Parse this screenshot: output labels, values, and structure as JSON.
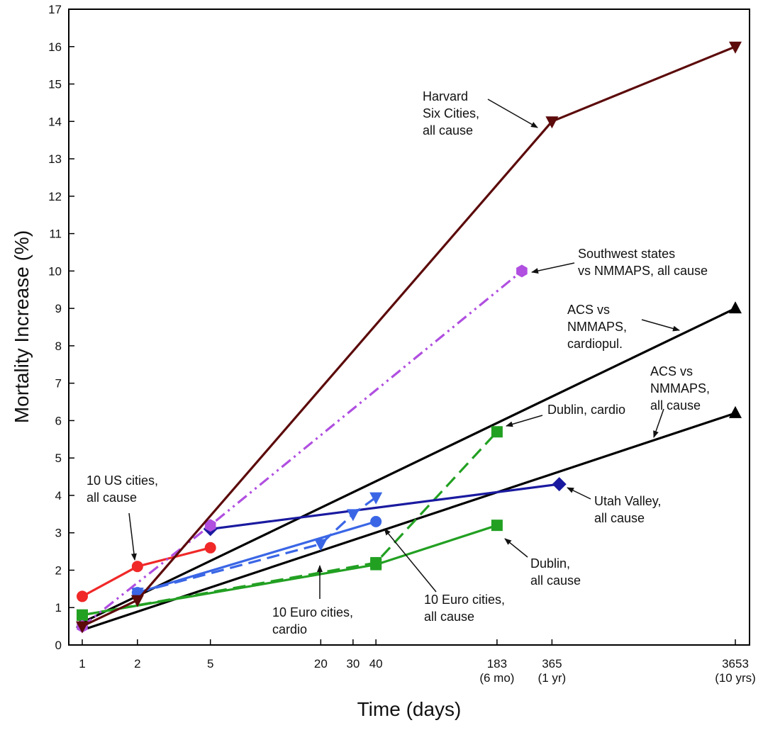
{
  "chart_data": {
    "type": "line",
    "title": "",
    "xlabel": "Time (days)",
    "ylabel": "Mortality Increase (%)",
    "ylim": [
      0,
      17
    ],
    "x_scale": "log",
    "xlim": [
      1,
      3653
    ],
    "y_ticks": [
      0,
      1,
      2,
      3,
      4,
      5,
      6,
      7,
      8,
      9,
      10,
      11,
      12,
      13,
      14,
      15,
      16,
      17
    ],
    "x_ticks": [
      {
        "value": 1,
        "label": "1",
        "sublabel": ""
      },
      {
        "value": 2,
        "label": "2",
        "sublabel": ""
      },
      {
        "value": 5,
        "label": "5",
        "sublabel": ""
      },
      {
        "value": 20,
        "label": "20",
        "sublabel": ""
      },
      {
        "value": 30,
        "label": "30",
        "sublabel": ""
      },
      {
        "value": 40,
        "label": "40",
        "sublabel": ""
      },
      {
        "value": 183,
        "label": "183",
        "sublabel": "(6 mo)"
      },
      {
        "value": 365,
        "label": "365",
        "sublabel": "(1 yr)"
      },
      {
        "value": 3653,
        "label": "3653",
        "sublabel": "(10 yrs)"
      }
    ],
    "grid": false,
    "series": [
      {
        "name": "Harvard Six Cities, all cause",
        "color": "#5c0a0a",
        "marker": "triangle-down",
        "dash": "solid",
        "x": [
          1,
          2,
          365,
          3653
        ],
        "y": [
          0.5,
          1.2,
          14.0,
          16.0
        ]
      },
      {
        "name": "Southwest states vs NMMAPS, all cause",
        "color": "#b04fe0",
        "marker": "hexagon",
        "dash": "dashdotdot",
        "x": [
          1,
          5,
          250
        ],
        "y": [
          0.5,
          3.2,
          10.0
        ]
      },
      {
        "name": "ACS vs NMMAPS, cardiopul.",
        "color": "#000000",
        "marker": "triangle-up",
        "dash": "solid",
        "x": [
          1,
          3653
        ],
        "y": [
          0.6,
          9.0
        ]
      },
      {
        "name": "ACS vs NMMAPS, all cause",
        "color": "#000000",
        "marker": "triangle-up",
        "dash": "solid",
        "x": [
          1,
          3653
        ],
        "y": [
          0.4,
          6.2
        ]
      },
      {
        "name": "Dublin, cardio",
        "color": "#22a022",
        "marker": "square",
        "dash": "dash",
        "x": [
          1,
          40,
          183
        ],
        "y": [
          0.8,
          2.2,
          5.7
        ]
      },
      {
        "name": "Dublin, all cause",
        "color": "#22a022",
        "marker": "square",
        "dash": "solid",
        "x": [
          1,
          40,
          183
        ],
        "y": [
          0.8,
          2.15,
          3.2
        ]
      },
      {
        "name": "Utah Valley, all cause",
        "color": "#1a1aa0",
        "marker": "diamond",
        "dash": "solid",
        "x": [
          5,
          400
        ],
        "y": [
          3.1,
          4.3
        ]
      },
      {
        "name": "10 Euro cities, cardio",
        "color": "#3a66e6",
        "marker": "triangle-down",
        "dash": "dash",
        "x": [
          2,
          20,
          30,
          40
        ],
        "y": [
          1.4,
          2.7,
          3.5,
          3.95
        ]
      },
      {
        "name": "10 Euro cities, all cause",
        "color": "#3a66e6",
        "marker": "circle",
        "dash": "solid",
        "x": [
          2,
          40
        ],
        "y": [
          1.4,
          3.3
        ]
      },
      {
        "name": "10 US cities, all cause",
        "color": "#f02828",
        "marker": "circle",
        "dash": "solid",
        "x": [
          1,
          2,
          5
        ],
        "y": [
          1.3,
          2.1,
          2.6
        ]
      }
    ],
    "annotations": [
      {
        "lines": [
          "Harvard",
          "Six Cities,",
          "all cause"
        ]
      },
      {
        "lines": [
          "Southwest states",
          "vs NMMAPS, all cause"
        ]
      },
      {
        "lines": [
          "ACS vs",
          "NMMAPS,",
          "cardiopul."
        ]
      },
      {
        "lines": [
          "ACS vs",
          "NMMAPS,",
          "all cause"
        ]
      },
      {
        "lines": [
          "Dublin, cardio"
        ]
      },
      {
        "lines": [
          "Utah Valley,",
          "all cause"
        ]
      },
      {
        "lines": [
          "Dublin,",
          "all cause"
        ]
      },
      {
        "lines": [
          "10 Euro cities,",
          "all cause"
        ]
      },
      {
        "lines": [
          "10 Euro cities,",
          "cardio"
        ]
      },
      {
        "lines": [
          "10 US cities,",
          "all cause"
        ]
      }
    ]
  }
}
